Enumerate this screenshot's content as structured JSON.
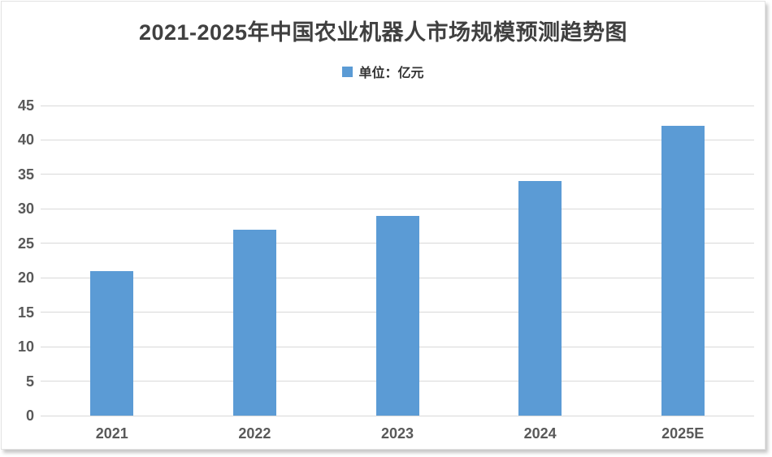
{
  "chart_data": {
    "type": "bar",
    "title": "2021-2025年中国农业机器人市场规模预测趋势图",
    "legend": {
      "label": "单位：亿元",
      "position": "top-center"
    },
    "categories": [
      "2021",
      "2022",
      "2023",
      "2024",
      "2025E"
    ],
    "values": [
      21,
      27,
      29,
      34,
      42
    ],
    "xlabel": "",
    "ylabel": "",
    "ylim": [
      0,
      45
    ],
    "ytick_step": 5,
    "yticks": [
      0,
      5,
      10,
      15,
      20,
      25,
      30,
      35,
      40,
      45
    ],
    "grid": "horizontal",
    "colors": {
      "bar": "#5B9BD5",
      "gridline": "#D9D9D9",
      "axis_label": "#595959",
      "title": "#404040",
      "legend_text": "#333333",
      "background": "#FFFFFF"
    }
  }
}
